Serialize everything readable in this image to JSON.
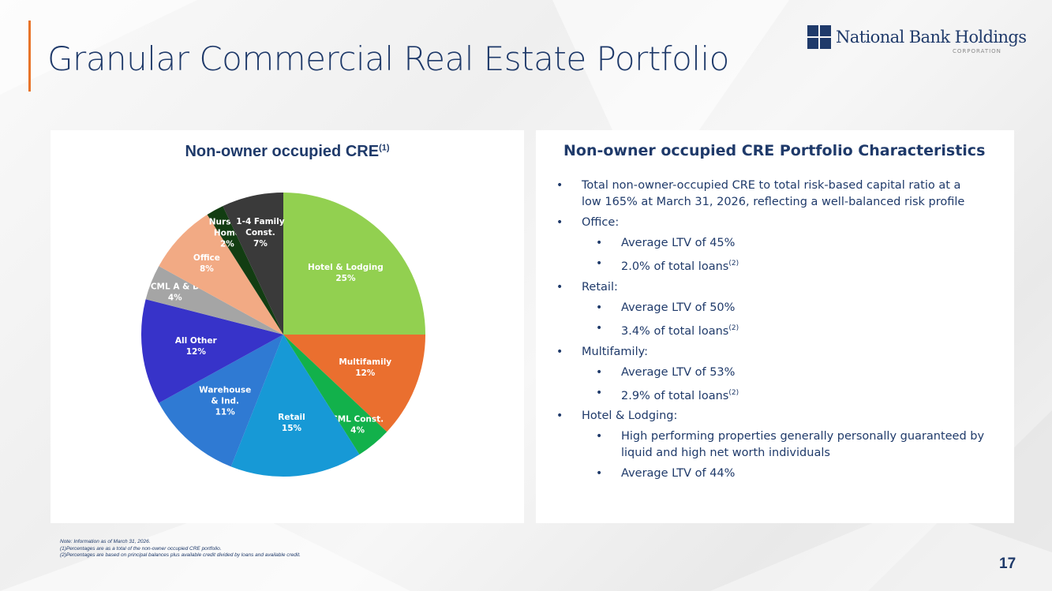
{
  "slide": {
    "title": "Granular Commercial Real Estate Portfolio",
    "page_number": "17",
    "accent_color": "#e8742a",
    "brand_color": "#1f3a6a"
  },
  "logo": {
    "name": "National Bank Holdings",
    "sub": "CORPORATION"
  },
  "chart_data": {
    "type": "pie",
    "title": "Non-owner occupied CRE",
    "title_superscript": "(1)",
    "slices": [
      {
        "label": [
          "Hotel & Lodging"
        ],
        "pct_label": "25%",
        "value": 25,
        "color": "#92d050"
      },
      {
        "label": [
          "Multifamily"
        ],
        "pct_label": "12%",
        "value": 12,
        "color": "#ea6f2f"
      },
      {
        "label": [
          "CML Const."
        ],
        "pct_label": "4%",
        "value": 4,
        "color": "#12b14b"
      },
      {
        "label": [
          "Retail"
        ],
        "pct_label": "15%",
        "value": 15,
        "color": "#1799d6"
      },
      {
        "label": [
          "Warehouse",
          "& Ind."
        ],
        "pct_label": "11%",
        "value": 11,
        "color": "#2f7ad3"
      },
      {
        "label": [
          "All Other"
        ],
        "pct_label": "12%",
        "value": 12,
        "color": "#3733c9"
      },
      {
        "label": [
          "CML A & D"
        ],
        "pct_label": "4%",
        "value": 4,
        "color": "#a5a5a5"
      },
      {
        "label": [
          "Office"
        ],
        "pct_label": "8%",
        "value": 8,
        "color": "#f2aa84"
      },
      {
        "label": [
          "Nursing",
          "Home"
        ],
        "pct_label": "2%",
        "value": 2,
        "color": "#123d12"
      },
      {
        "label": [
          "1-4 Family",
          "Const."
        ],
        "pct_label": "7%",
        "value": 7,
        "color": "#3a3a3a"
      }
    ]
  },
  "characteristics": {
    "title": "Non-owner occupied CRE Portfolio Characteristics",
    "bullets": [
      {
        "level": 1,
        "text": "Total non-owner-occupied CRE to total risk-based capital ratio at a low 165% at March 31, 2026, reflecting a well-balanced risk profile",
        "sup": ""
      },
      {
        "level": 1,
        "text": "Office:",
        "sup": ""
      },
      {
        "level": 2,
        "text": "Average LTV of 45%",
        "sup": ""
      },
      {
        "level": 2,
        "text": "2.0% of total loans",
        "sup": "(2)"
      },
      {
        "level": 1,
        "text": "Retail:",
        "sup": ""
      },
      {
        "level": 2,
        "text": "Average LTV of 50%",
        "sup": ""
      },
      {
        "level": 2,
        "text": "3.4% of total loans",
        "sup": "(2)"
      },
      {
        "level": 1,
        "text": "Multifamily:",
        "sup": ""
      },
      {
        "level": 2,
        "text": "Average LTV of 53%",
        "sup": ""
      },
      {
        "level": 2,
        "text": "2.9% of total loans",
        "sup": "(2)"
      },
      {
        "level": 1,
        "text": "Hotel & Lodging:",
        "sup": ""
      },
      {
        "level": 2,
        "text": "High performing properties generally personally guaranteed by liquid and high net worth individuals",
        "sup": ""
      },
      {
        "level": 2,
        "text": "Average LTV of 44%",
        "sup": ""
      }
    ]
  },
  "notes": [
    "Note: Information as of March 31, 2026.",
    "(1)Percentages are as a total of the non-owner occupied CRE portfolio.",
    "(2)Percentages are based on principal balances plus available credit divided by loans and available credit."
  ]
}
